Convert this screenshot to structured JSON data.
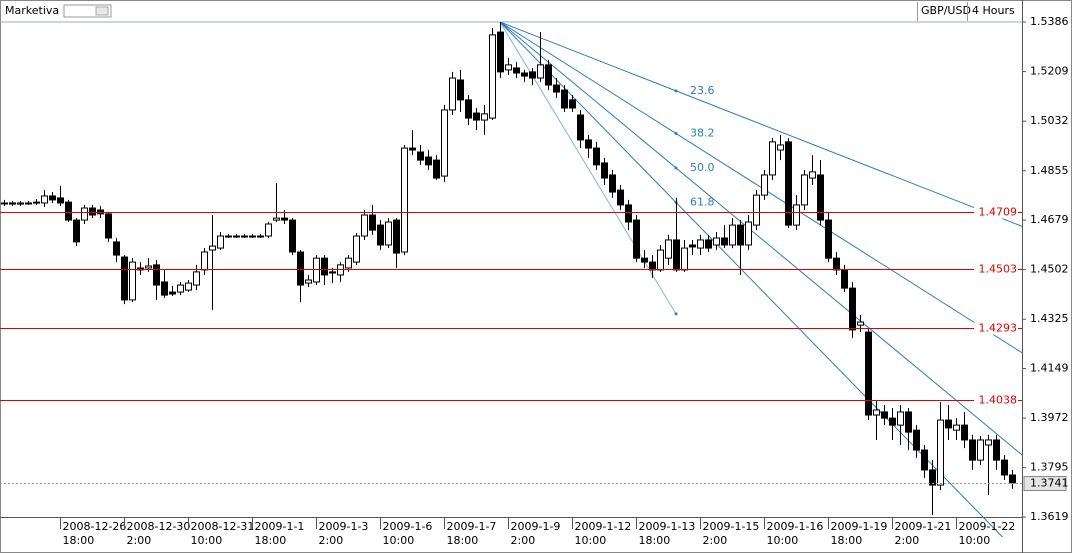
{
  "header": {
    "brand": "Marketiva",
    "symbol": "GBP/USD",
    "period": "4 Hours"
  },
  "chart_data": {
    "type": "candlestick",
    "ylim": [
      1.3619,
      1.5386
    ],
    "yticks": [
      1.3619,
      1.3795,
      1.3972,
      1.4149,
      1.4325,
      1.4502,
      1.4679,
      1.4855,
      1.5032,
      1.5209,
      1.5386
    ],
    "up_color": "#ffffff",
    "down_color": "#000000",
    "categories": [
      null,
      null,
      null,
      null,
      null,
      null,
      null,
      "2008-12-26\n18:00",
      null,
      null,
      null,
      null,
      null,
      null,
      null,
      "2008-12-30\n2:00",
      null,
      null,
      null,
      null,
      null,
      null,
      null,
      "2008-12-31\n10:00",
      null,
      null,
      null,
      null,
      null,
      null,
      null,
      "2009-1-1\n18:00",
      null,
      null,
      null,
      null,
      null,
      null,
      null,
      "2009-1-3\n2:00",
      null,
      null,
      null,
      null,
      null,
      null,
      null,
      "2009-1-6\n10:00",
      null,
      null,
      null,
      null,
      null,
      null,
      null,
      "2009-1-7\n18:00",
      null,
      null,
      null,
      null,
      null,
      null,
      null,
      "2009-1-9\n2:00",
      null,
      null,
      null,
      null,
      null,
      null,
      null,
      "2009-1-12\n10:00",
      null,
      null,
      null,
      null,
      null,
      null,
      null,
      "2009-1-13\n18:00",
      null,
      null,
      null,
      null,
      null,
      null,
      null,
      "2009-1-15\n2:00",
      null,
      null,
      null,
      null,
      null,
      null,
      null,
      "2009-1-16\n10:00",
      null,
      null,
      null,
      null,
      null,
      null,
      null,
      "2009-1-19\n18:00",
      null,
      null,
      null,
      null,
      null,
      null,
      null,
      "2009-1-21\n2:00",
      null,
      null,
      null,
      null,
      null,
      null,
      null,
      "2009-1-22\n10:00",
      null,
      null,
      null,
      null,
      null,
      null,
      null
    ],
    "ohlc": [
      [
        1.474,
        1.4751,
        1.4729,
        1.474
      ],
      [
        1.474,
        1.4747,
        1.4729,
        1.4736
      ],
      [
        1.4736,
        1.4747,
        1.4729,
        1.474
      ],
      [
        1.474,
        1.4747,
        1.4733,
        1.474
      ],
      [
        1.474,
        1.4754,
        1.4733,
        1.4743
      ],
      [
        1.474,
        1.4786,
        1.4726,
        1.4765
      ],
      [
        1.4765,
        1.4779,
        1.474,
        1.4751
      ],
      [
        1.4758,
        1.4801,
        1.4729,
        1.474
      ],
      [
        1.4743,
        1.4751,
        1.4672,
        1.4679
      ],
      [
        1.4679,
        1.4686,
        1.4586,
        1.4601
      ],
      [
        1.4679,
        1.4733,
        1.4665,
        1.4722
      ],
      [
        1.4722,
        1.4733,
        1.4686,
        1.4697
      ],
      [
        1.4715,
        1.4729,
        1.4686,
        1.4701
      ],
      [
        1.4701,
        1.4708,
        1.4601,
        1.4615
      ],
      [
        1.4601,
        1.4615,
        1.4529,
        1.4554
      ],
      [
        1.4547,
        1.4554,
        1.4379,
        1.4394
      ],
      [
        1.4394,
        1.4543,
        1.4386,
        1.4529
      ],
      [
        1.4508,
        1.4529,
        1.4483,
        1.4501
      ],
      [
        1.4508,
        1.4543,
        1.4494,
        1.4515
      ],
      [
        1.4519,
        1.4536,
        1.4394,
        1.4447
      ],
      [
        1.4458,
        1.4501,
        1.4401,
        1.4411
      ],
      [
        1.4422,
        1.4444,
        1.4408,
        1.4415
      ],
      [
        1.4422,
        1.4458,
        1.4411,
        1.4447
      ],
      [
        1.4429,
        1.4465,
        1.4422,
        1.4454
      ],
      [
        1.4447,
        1.4519,
        1.4429,
        1.4494
      ],
      [
        1.4501,
        1.4579,
        1.4483,
        1.4565
      ],
      [
        1.4572,
        1.4697,
        1.4358,
        1.4586
      ],
      [
        1.4579,
        1.4636,
        1.4572,
        1.4622
      ],
      [
        1.4622,
        1.4629,
        1.4615,
        1.4622
      ],
      [
        1.4622,
        1.4629,
        1.4615,
        1.4622
      ],
      [
        1.4622,
        1.4629,
        1.4615,
        1.4622
      ],
      [
        1.4622,
        1.4629,
        1.4615,
        1.4622
      ],
      [
        1.4622,
        1.4629,
        1.4615,
        1.4622
      ],
      [
        1.4622,
        1.4672,
        1.4615,
        1.4665
      ],
      [
        1.4679,
        1.4811,
        1.4672,
        1.4686
      ],
      [
        1.4686,
        1.4715,
        1.4665,
        1.4679
      ],
      [
        1.4679,
        1.4686,
        1.4554,
        1.4565
      ],
      [
        1.4565,
        1.4572,
        1.4386,
        1.4447
      ],
      [
        1.4454,
        1.4483,
        1.444,
        1.4465
      ],
      [
        1.4458,
        1.4554,
        1.4447,
        1.4543
      ],
      [
        1.4543,
        1.4554,
        1.4447,
        1.4483
      ],
      [
        1.4494,
        1.4508,
        1.4454,
        1.449
      ],
      [
        1.4483,
        1.4529,
        1.4458,
        1.4519
      ],
      [
        1.4508,
        1.4554,
        1.4494,
        1.4543
      ],
      [
        1.4529,
        1.4633,
        1.4519,
        1.4622
      ],
      [
        1.4622,
        1.4715,
        1.4608,
        1.4697
      ],
      [
        1.4697,
        1.4733,
        1.4626,
        1.4643
      ],
      [
        1.4661,
        1.4679,
        1.4572,
        1.459
      ],
      [
        1.459,
        1.4686,
        1.4579,
        1.4672
      ],
      [
        1.4679,
        1.4686,
        1.4508,
        1.4561
      ],
      [
        1.4565,
        1.4947,
        1.4554,
        1.4936
      ],
      [
        1.4936,
        1.5,
        1.4911,
        1.4929
      ],
      [
        1.4922,
        1.4947,
        1.4876,
        1.4893
      ],
      [
        1.4904,
        1.4929,
        1.4858,
        1.4876
      ],
      [
        1.4893,
        1.4911,
        1.4822,
        1.4829
      ],
      [
        1.4836,
        1.509,
        1.4815,
        1.5072
      ],
      [
        1.5072,
        1.5208,
        1.5054,
        1.5186
      ],
      [
        1.5179,
        1.5215,
        1.5065,
        1.5108
      ],
      [
        1.5108,
        1.5125,
        1.5018,
        1.5043
      ],
      [
        1.5061,
        1.5079,
        1.5,
        1.5036
      ],
      [
        1.5036,
        1.509,
        1.4983,
        1.5058
      ],
      [
        1.5043,
        1.5365,
        1.5036,
        1.534
      ],
      [
        1.535,
        1.5386,
        1.5186,
        1.5208
      ],
      [
        1.5215,
        1.5258,
        1.5197,
        1.5233
      ],
      [
        1.5222,
        1.5243,
        1.5186,
        1.5204
      ],
      [
        1.5204,
        1.5215,
        1.5172,
        1.5193
      ],
      [
        1.5208,
        1.5222,
        1.5161,
        1.5186
      ],
      [
        1.5186,
        1.535,
        1.5172,
        1.5233
      ],
      [
        1.5233,
        1.525,
        1.5143,
        1.5161
      ],
      [
        1.5161,
        1.5186,
        1.5115,
        1.5136
      ],
      [
        1.5143,
        1.5161,
        1.5065,
        1.5079
      ],
      [
        1.5108,
        1.5125,
        1.5065,
        1.5079
      ],
      [
        1.5054,
        1.5072,
        1.4936,
        1.4965
      ],
      [
        1.4965,
        1.4983,
        1.4901,
        1.4936
      ],
      [
        1.4936,
        1.4958,
        1.4858,
        1.4876
      ],
      [
        1.4883,
        1.4901,
        1.4804,
        1.4829
      ],
      [
        1.484,
        1.4858,
        1.4758,
        1.4779
      ],
      [
        1.4786,
        1.4804,
        1.4715,
        1.4733
      ],
      [
        1.4733,
        1.4751,
        1.4643,
        1.4672
      ],
      [
        1.4679,
        1.4697,
        1.4529,
        1.4543
      ],
      [
        1.4543,
        1.4572,
        1.4508,
        1.4529
      ],
      [
        1.4529,
        1.4554,
        1.4472,
        1.4501
      ],
      [
        1.4501,
        1.459,
        1.4494,
        1.4572
      ],
      [
        1.4543,
        1.4626,
        1.4519,
        1.4608
      ],
      [
        1.4608,
        1.4758,
        1.4494,
        1.4501
      ],
      [
        1.4501,
        1.4608,
        1.4494,
        1.4579
      ],
      [
        1.459,
        1.4608,
        1.4554,
        1.4583
      ],
      [
        1.4579,
        1.4626,
        1.4554,
        1.4608
      ],
      [
        1.4608,
        1.4626,
        1.4565,
        1.4579
      ],
      [
        1.459,
        1.4636,
        1.4572,
        1.4615
      ],
      [
        1.4615,
        1.4661,
        1.4579,
        1.459
      ],
      [
        1.459,
        1.4686,
        1.4579,
        1.4661
      ],
      [
        1.4661,
        1.4679,
        1.4483,
        1.459
      ],
      [
        1.459,
        1.4697,
        1.4572,
        1.4672
      ],
      [
        1.4661,
        1.4786,
        1.4643,
        1.4768
      ],
      [
        1.4768,
        1.4858,
        1.4751,
        1.484
      ],
      [
        1.484,
        1.4972,
        1.4822,
        1.4958
      ],
      [
        1.4929,
        1.4983,
        1.4893,
        1.4947
      ],
      [
        1.4958,
        1.4972,
        1.465,
        1.4661
      ],
      [
        1.4661,
        1.4768,
        1.4643,
        1.4733
      ],
      [
        1.4733,
        1.4858,
        1.4715,
        1.484
      ],
      [
        1.4829,
        1.4911,
        1.4804,
        1.4851
      ],
      [
        1.484,
        1.4893,
        1.4661,
        1.4679
      ],
      [
        1.4679,
        1.4708,
        1.4529,
        1.4543
      ],
      [
        1.4543,
        1.4565,
        1.4483,
        1.4501
      ],
      [
        1.4501,
        1.4519,
        1.4422,
        1.4436
      ],
      [
        1.4436,
        1.4458,
        1.4258,
        1.4287
      ],
      [
        1.4304,
        1.434,
        1.4279,
        1.4315
      ],
      [
        1.4279,
        1.4294,
        1.3965,
        1.3983
      ],
      [
        1.3983,
        1.4037,
        1.3894,
        1.4001
      ],
      [
        1.3994,
        1.4019,
        1.3947,
        1.3972
      ],
      [
        1.3972,
        1.4008,
        1.3894,
        1.3947
      ],
      [
        1.3947,
        1.4019,
        1.3876,
        1.3994
      ],
      [
        1.3994,
        1.4008,
        1.3858,
        1.3922
      ],
      [
        1.3929,
        1.3947,
        1.383,
        1.3858
      ],
      [
        1.3858,
        1.3876,
        1.3758,
        1.3787
      ],
      [
        1.3787,
        1.3822,
        1.3626,
        1.3733
      ],
      [
        1.3733,
        1.4029,
        1.3715,
        1.3965
      ],
      [
        1.3965,
        1.4019,
        1.3894,
        1.3937
      ],
      [
        1.3929,
        1.3972,
        1.3894,
        1.3947
      ],
      [
        1.3947,
        1.3994,
        1.3865,
        1.3894
      ],
      [
        1.3894,
        1.3912,
        1.3787,
        1.3822
      ],
      [
        1.3822,
        1.3908,
        1.3804,
        1.3894
      ],
      [
        1.3876,
        1.3912,
        1.3697,
        1.3894
      ],
      [
        1.3894,
        1.3912,
        1.3787,
        1.3822
      ],
      [
        1.3822,
        1.384,
        1.3751,
        1.3769
      ],
      [
        1.3769,
        1.3787,
        1.372,
        1.3741
      ]
    ],
    "levels": [
      1.4709,
      1.4503,
      1.4293,
      1.4038
    ],
    "level_color": "#e00000",
    "last_price": 1.3741,
    "fan": {
      "from": {
        "index": 62,
        "price": 1.5386
      },
      "to": {
        "index": 84,
        "price": 1.4344
      },
      "levels": [
        23.6,
        38.2,
        {
          "value": 50,
          "label": "50.0"
        },
        61.8
      ],
      "color": "#2b7bbf"
    }
  }
}
